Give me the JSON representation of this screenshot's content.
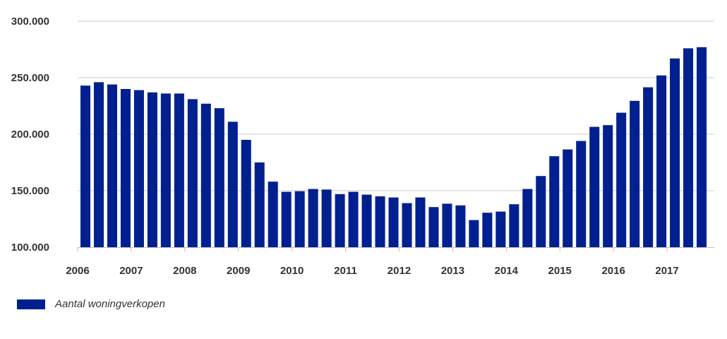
{
  "chart_data": {
    "type": "bar",
    "title": "",
    "xlabel": "",
    "ylabel": "",
    "ylim": [
      100000,
      300000
    ],
    "y_ticks": [
      "100.000",
      "150.000",
      "200.000",
      "250.000",
      "300.000"
    ],
    "y_tick_values": [
      100000,
      150000,
      200000,
      250000,
      300000
    ],
    "x_ticks": [
      "2006",
      "2007",
      "2008",
      "2009",
      "2010",
      "2011",
      "2012",
      "2013",
      "2014",
      "2015",
      "2016",
      "2017"
    ],
    "grid": true,
    "legend_position": "bottom-left",
    "bar_color": "#00208f",
    "grid_color": "#c8c8c8",
    "axis_color": "#bdbdbd",
    "series": [
      {
        "name": "Aantal woningverkopen",
        "values": [
          243000,
          246000,
          244000,
          240000,
          239000,
          237000,
          236000,
          236000,
          231000,
          227000,
          223000,
          211000,
          195000,
          175000,
          158000,
          149000,
          149500,
          151500,
          151000,
          147000,
          149000,
          146500,
          145000,
          144000,
          139000,
          144000,
          135500,
          138500,
          137000,
          124000,
          130500,
          131500,
          138000,
          151500,
          163000,
          180500,
          186500,
          194000,
          206500,
          208000,
          219000,
          229500,
          241500,
          252000,
          267000,
          276000,
          277000
        ]
      }
    ]
  }
}
